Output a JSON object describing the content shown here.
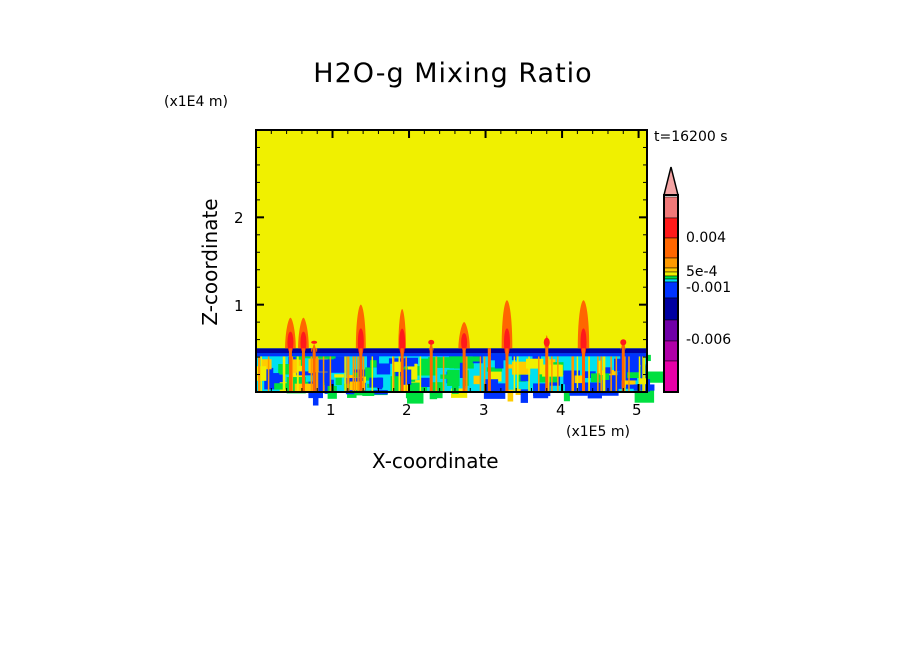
{
  "chart_data": {
    "type": "heatmap",
    "title": "H2O-g Mixing Ratio",
    "xlabel": "X-coordinate",
    "ylabel": "Z-coordinate",
    "x_unit": "(x1E5 m)",
    "y_unit": "(x1E4 m)",
    "time_label": "t=16200 s",
    "xlim": [
      0,
      5.11
    ],
    "ylim": [
      0,
      3.0
    ],
    "x_ticks": [
      {
        "v": 1,
        "label": "1"
      },
      {
        "v": 2,
        "label": "2"
      },
      {
        "v": 3,
        "label": "3"
      },
      {
        "v": 4,
        "label": "4"
      },
      {
        "v": 5,
        "label": "5"
      }
    ],
    "y_ticks": [
      {
        "v": 1,
        "label": "1"
      },
      {
        "v": 2,
        "label": "2"
      }
    ],
    "background_color": "#f0f000",
    "boundary_layer_top": 0.5,
    "plumes": [
      {
        "x": 0.45,
        "top": 0.85,
        "w": 0.14
      },
      {
        "x": 0.62,
        "top": 0.85,
        "w": 0.14
      },
      {
        "x": 0.76,
        "top": 0.55,
        "w": 0.08
      },
      {
        "x": 1.37,
        "top": 1.0,
        "w": 0.13
      },
      {
        "x": 1.91,
        "top": 0.95,
        "w": 0.1
      },
      {
        "x": 2.29,
        "top": 0.58,
        "w": 0.06
      },
      {
        "x": 2.72,
        "top": 0.8,
        "w": 0.15
      },
      {
        "x": 3.05,
        "top": 0.5,
        "w": 0.04
      },
      {
        "x": 3.28,
        "top": 1.05,
        "w": 0.14
      },
      {
        "x": 3.8,
        "top": 0.65,
        "w": 0.06
      },
      {
        "x": 4.28,
        "top": 1.05,
        "w": 0.15
      },
      {
        "x": 4.8,
        "top": 0.6,
        "w": 0.07
      }
    ],
    "colorbar": {
      "levels_colors": [
        "#f4a4a4",
        "#f07878",
        "#ff1a1a",
        "#ff6600",
        "#ff9900",
        "#ffcc00",
        "#f0f000",
        "#00e040",
        "#00e0f0",
        "#0033ff",
        "#0000a0",
        "#7000a8",
        "#b000a8",
        "#e800a8"
      ],
      "labels": [
        {
          "label": "0.004",
          "v": 0.004
        },
        {
          "label": "5e-4",
          "v": 0.0005
        },
        {
          "label": "-0.001",
          "v": -0.001
        },
        {
          "label": "-0.006",
          "v": -0.006
        }
      ]
    }
  }
}
